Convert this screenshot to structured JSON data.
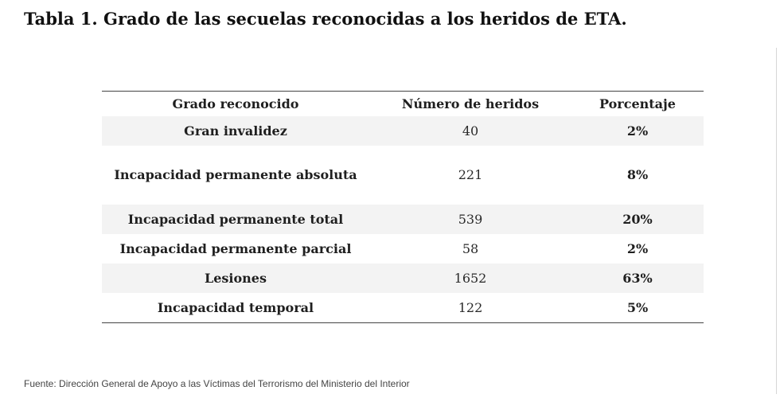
{
  "title": "Tabla 1. Grado de las secuelas reconocidas a los heridos de ETA.",
  "table": {
    "headers": [
      "Grado reconocido",
      "Número de heridos",
      "Porcentaje"
    ],
    "rows": [
      {
        "grado": "Gran invalidez",
        "heridos": "40",
        "porcentaje": "2%"
      },
      {
        "grado": "Incapacidad permanente absoluta",
        "heridos": "221",
        "porcentaje": "8%"
      },
      {
        "grado": "Incapacidad permanente total",
        "heridos": "539",
        "porcentaje": "20%"
      },
      {
        "grado": "Incapacidad permanente parcial",
        "heridos": "58",
        "porcentaje": "2%"
      },
      {
        "grado": "Lesiones",
        "heridos": "1652",
        "porcentaje": "63%"
      },
      {
        "grado": "Incapacidad temporal",
        "heridos": "122",
        "porcentaje": "5%"
      }
    ]
  },
  "source": "Fuente: Dirección General de Apoyo a las Víctimas del Terrorismo del Ministerio del Interior",
  "colors": {
    "text": "#1a1a1a",
    "row_shade": "#f3f3f3",
    "rule": "#444444"
  }
}
